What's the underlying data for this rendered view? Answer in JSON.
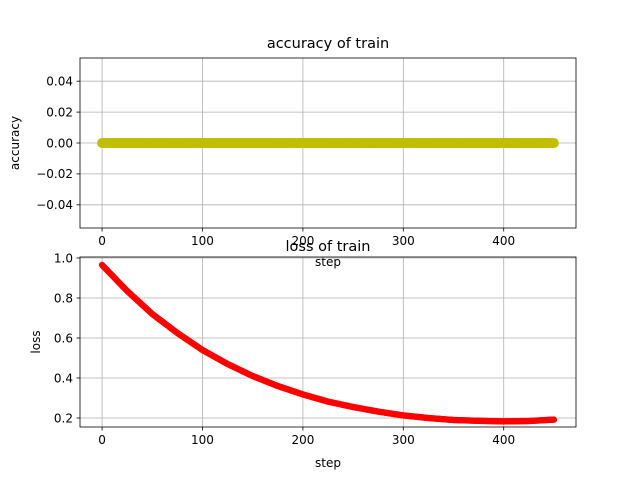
{
  "chart_data": [
    {
      "type": "scatter",
      "title": "accuracy of train",
      "xlabel": "step",
      "ylabel": "accuracy",
      "xlim": [
        -22,
        472
      ],
      "ylim": [
        -0.055,
        0.055
      ],
      "xticks": [
        0,
        100,
        200,
        300,
        400
      ],
      "xtick_labels": [
        "0",
        "100",
        "200",
        "300",
        "400"
      ],
      "yticks": [
        -0.04,
        -0.02,
        0.0,
        0.02,
        0.04
      ],
      "ytick_labels": [
        "−0.04",
        "−0.02",
        "0.00",
        "0.02",
        "0.04"
      ],
      "grid": true,
      "series": [
        {
          "color": "#bfbf00",
          "x": [
            0,
            450
          ],
          "y": [
            0.0,
            0.0
          ],
          "step_every": 1
        }
      ]
    },
    {
      "type": "scatter",
      "title": "loss of train",
      "xlabel": "step",
      "ylabel": "loss",
      "xlim": [
        -22,
        472
      ],
      "ylim": [
        0.155,
        1.005
      ],
      "xticks": [
        0,
        100,
        200,
        300,
        400
      ],
      "xtick_labels": [
        "0",
        "100",
        "200",
        "300",
        "400"
      ],
      "yticks": [
        0.2,
        0.4,
        0.6,
        0.8,
        1.0
      ],
      "ytick_labels": [
        "0.2",
        "0.4",
        "0.6",
        "0.8",
        "1.0"
      ],
      "grid": true,
      "series": [
        {
          "color": "#ff0000",
          "x": [
            0,
            25,
            50,
            75,
            100,
            125,
            150,
            175,
            200,
            225,
            250,
            275,
            300,
            325,
            350,
            375,
            400,
            425,
            450
          ],
          "y": [
            0.965,
            0.835,
            0.72,
            0.625,
            0.54,
            0.47,
            0.41,
            0.36,
            0.318,
            0.282,
            0.255,
            0.232,
            0.213,
            0.2,
            0.19,
            0.186,
            0.183,
            0.185,
            0.192
          ]
        }
      ]
    }
  ]
}
